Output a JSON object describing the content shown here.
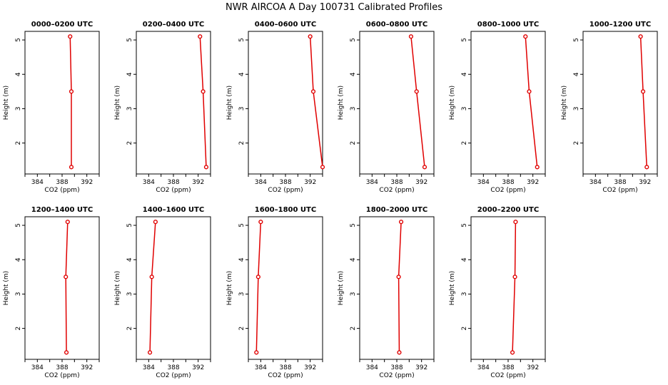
{
  "title": "NWR AIRCOA A  Day 100731  Calibrated Profiles",
  "colors": {
    "series": "#e00000",
    "axis": "#000000",
    "background": "#ffffff"
  },
  "chart_data": [
    {
      "type": "line",
      "title": "0000–0200 UTC",
      "xlabel": "CO2 (ppm)",
      "ylabel": "Height (m)",
      "xlim": [
        382,
        394
      ],
      "ylim": [
        1.1,
        5.25
      ],
      "xticks": [
        "384",
        "388",
        "392"
      ],
      "yticks": [
        "2",
        "3",
        "4",
        "5"
      ],
      "x": [
        389.3,
        389.5,
        389.5
      ],
      "y": [
        5.1,
        3.5,
        1.3
      ]
    },
    {
      "type": "line",
      "title": "0200–0400 UTC",
      "xlabel": "CO2 (ppm)",
      "ylabel": "Height (m)",
      "xlim": [
        382,
        394
      ],
      "ylim": [
        1.1,
        5.25
      ],
      "xticks": [
        "384",
        "388",
        "392"
      ],
      "yticks": [
        "2",
        "3",
        "4",
        "5"
      ],
      "x": [
        392.3,
        392.8,
        393.3
      ],
      "y": [
        5.1,
        3.5,
        1.3
      ]
    },
    {
      "type": "line",
      "title": "0400–0600 UTC",
      "xlabel": "CO2 (ppm)",
      "ylabel": "Height (m)",
      "xlim": [
        382,
        394
      ],
      "ylim": [
        1.1,
        5.25
      ],
      "xticks": [
        "384",
        "388",
        "392"
      ],
      "yticks": [
        "2",
        "3",
        "4",
        "5"
      ],
      "x": [
        392.0,
        392.5,
        394.0
      ],
      "y": [
        5.1,
        3.5,
        1.3
      ]
    },
    {
      "type": "line",
      "title": "0600–0800 UTC",
      "xlabel": "CO2 (ppm)",
      "ylabel": "Height (m)",
      "xlim": [
        382,
        394
      ],
      "ylim": [
        1.1,
        5.25
      ],
      "xticks": [
        "384",
        "388",
        "392"
      ],
      "yticks": [
        "2",
        "3",
        "4",
        "5"
      ],
      "x": [
        390.3,
        391.2,
        392.5
      ],
      "y": [
        5.1,
        3.5,
        1.3
      ]
    },
    {
      "type": "line",
      "title": "0800–1000 UTC",
      "xlabel": "CO2 (ppm)",
      "ylabel": "Height (m)",
      "xlim": [
        382,
        394
      ],
      "ylim": [
        1.1,
        5.25
      ],
      "xticks": [
        "384",
        "388",
        "392"
      ],
      "yticks": [
        "2",
        "3",
        "4",
        "5"
      ],
      "x": [
        390.8,
        391.4,
        392.7
      ],
      "y": [
        5.1,
        3.5,
        1.3
      ]
    },
    {
      "type": "line",
      "title": "1000–1200 UTC",
      "xlabel": "CO2 (ppm)",
      "ylabel": "Height (m)",
      "xlim": [
        382,
        394
      ],
      "ylim": [
        1.1,
        5.25
      ],
      "xticks": [
        "384",
        "388",
        "392"
      ],
      "yticks": [
        "2",
        "3",
        "4",
        "5"
      ],
      "x": [
        391.3,
        391.7,
        392.3
      ],
      "y": [
        5.1,
        3.5,
        1.3
      ]
    },
    {
      "type": "line",
      "title": "1200–1400 UTC",
      "xlabel": "CO2 (ppm)",
      "ylabel": "Height (m)",
      "xlim": [
        382,
        394
      ],
      "ylim": [
        1.1,
        5.25
      ],
      "xticks": [
        "384",
        "388",
        "392"
      ],
      "yticks": [
        "2",
        "3",
        "4",
        "5"
      ],
      "x": [
        388.9,
        388.6,
        388.7
      ],
      "y": [
        5.1,
        3.5,
        1.3
      ]
    },
    {
      "type": "line",
      "title": "1400–1600 UTC",
      "xlabel": "CO2 (ppm)",
      "ylabel": "Height (m)",
      "xlim": [
        382,
        394
      ],
      "ylim": [
        1.1,
        5.25
      ],
      "xticks": [
        "384",
        "388",
        "392"
      ],
      "yticks": [
        "2",
        "3",
        "4",
        "5"
      ],
      "x": [
        385.1,
        384.5,
        384.2
      ],
      "y": [
        5.1,
        3.5,
        1.3
      ]
    },
    {
      "type": "line",
      "title": "1600–1800 UTC",
      "xlabel": "CO2 (ppm)",
      "ylabel": "Height (m)",
      "xlim": [
        382,
        394
      ],
      "ylim": [
        1.1,
        5.25
      ],
      "xticks": [
        "384",
        "388",
        "392"
      ],
      "yticks": [
        "2",
        "3",
        "4",
        "5"
      ],
      "x": [
        384.0,
        383.6,
        383.3
      ],
      "y": [
        5.1,
        3.5,
        1.3
      ]
    },
    {
      "type": "line",
      "title": "1800–2000 UTC",
      "xlabel": "CO2 (ppm)",
      "ylabel": "Height (m)",
      "xlim": [
        382,
        394
      ],
      "ylim": [
        1.1,
        5.25
      ],
      "xticks": [
        "384",
        "388",
        "392"
      ],
      "yticks": [
        "2",
        "3",
        "4",
        "5"
      ],
      "x": [
        388.7,
        388.3,
        388.4
      ],
      "y": [
        5.1,
        3.5,
        1.3
      ]
    },
    {
      "type": "line",
      "title": "2000–2200 UTC",
      "xlabel": "CO2 (ppm)",
      "ylabel": "Height (m)",
      "xlim": [
        382,
        394
      ],
      "ylim": [
        1.1,
        5.25
      ],
      "xticks": [
        "384",
        "388",
        "392"
      ],
      "yticks": [
        "2",
        "3",
        "4",
        "5"
      ],
      "x": [
        389.2,
        389.1,
        388.7
      ],
      "y": [
        5.1,
        3.5,
        1.3
      ]
    }
  ]
}
